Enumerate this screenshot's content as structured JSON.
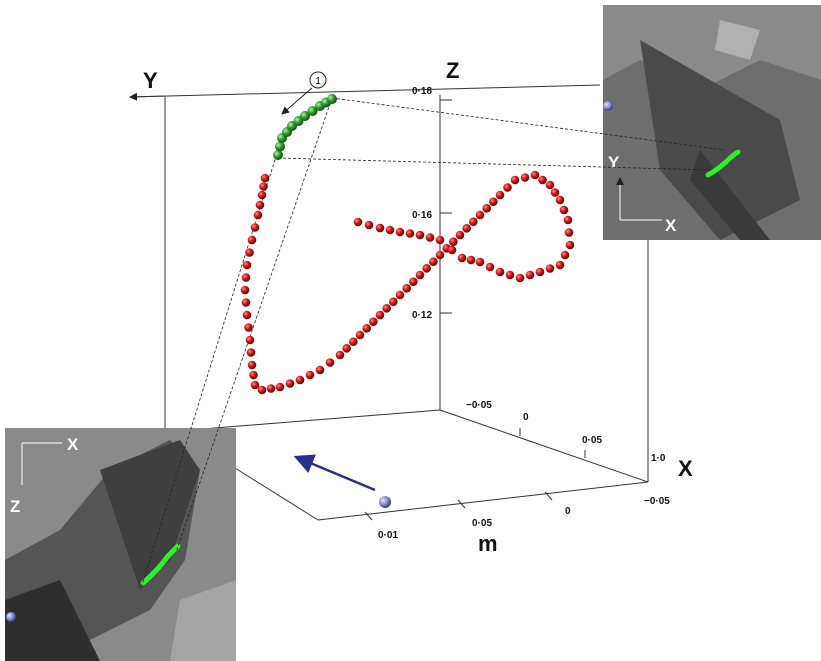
{
  "axes": {
    "y_label": "Y",
    "z_label": "Z",
    "x_label": "X",
    "unit_label": "m"
  },
  "z_ticks": [
    "0·18",
    "0·16",
    "0·12"
  ],
  "back_ticks": [
    "−0·05",
    "0",
    "0·05",
    "1·0"
  ],
  "floor_ticks": [
    "0·01",
    "0·05",
    "0",
    "−0·05"
  ],
  "annotation": "1",
  "inset_top": {
    "y_label": "Y",
    "x_label": "X"
  },
  "inset_bottom": {
    "x_label": "X",
    "z_label": "Z"
  }
}
